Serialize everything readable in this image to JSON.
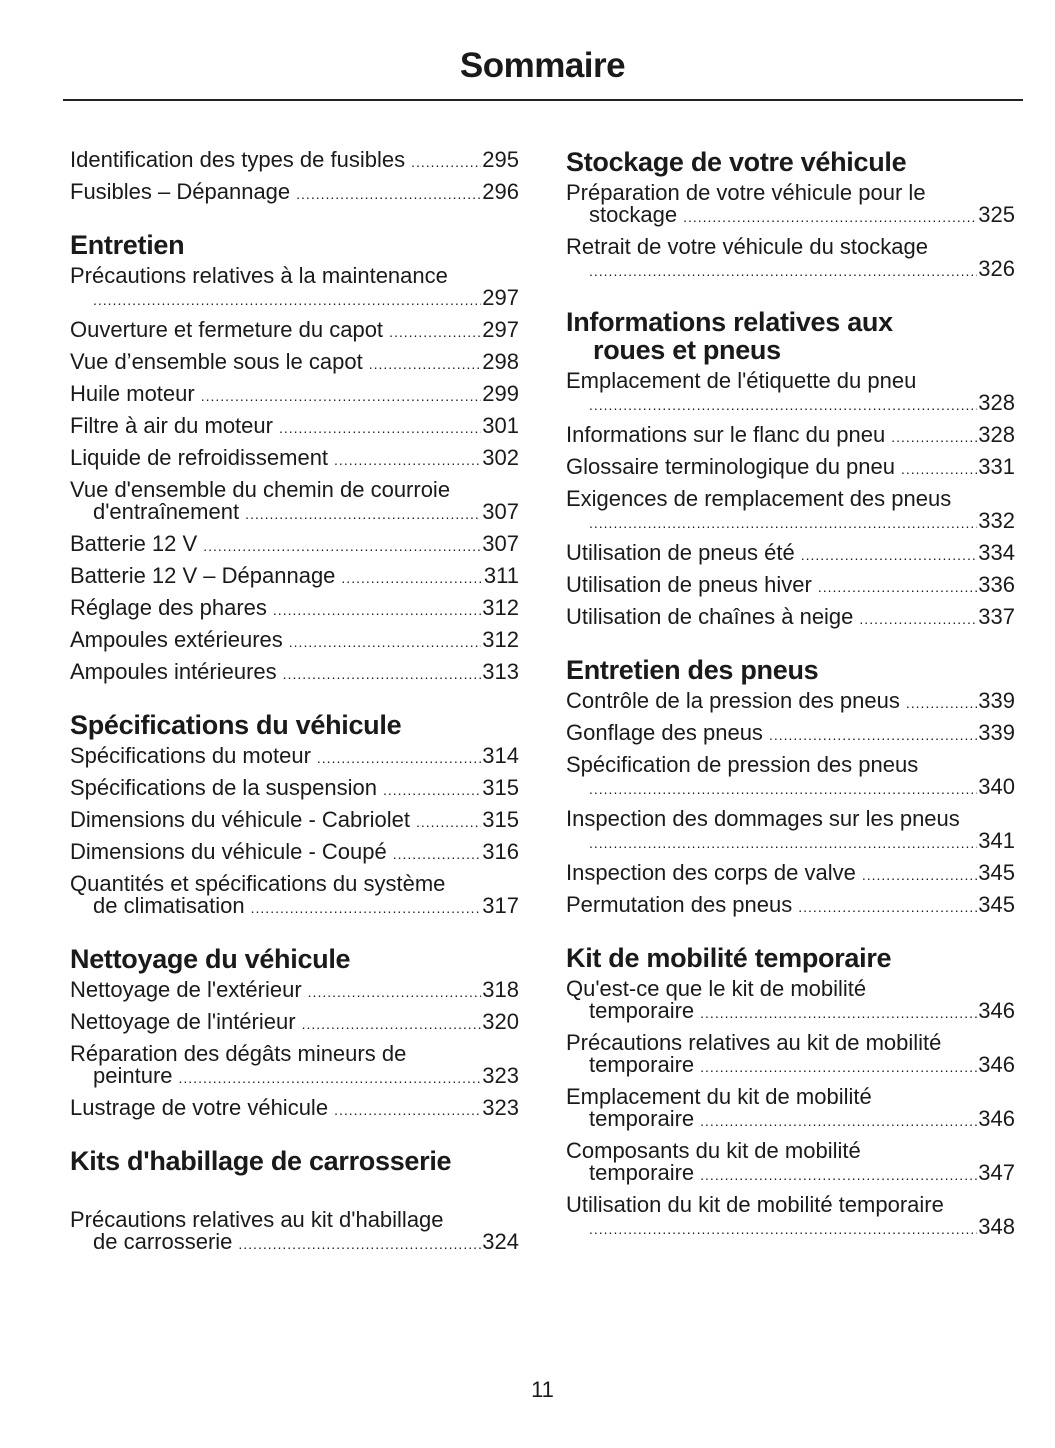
{
  "page_title": "Sommaire",
  "page_number": "11",
  "left_column": [
    {
      "type": "entry",
      "text": "Identification des types de fusibles",
      "page": "295"
    },
    {
      "type": "entry",
      "text": "Fusibles – Dépannage",
      "page": "296"
    },
    {
      "type": "heading",
      "text": "Entretien"
    },
    {
      "type": "entry",
      "text": "Précautions relatives à la maintenance",
      "wrap": "",
      "page": "297"
    },
    {
      "type": "entry",
      "text": "Ouverture et fermeture du capot",
      "page": "297"
    },
    {
      "type": "entry",
      "text": "Vue d’ensemble sous le capot",
      "page": "298"
    },
    {
      "type": "entry",
      "text": "Huile moteur",
      "page": "299"
    },
    {
      "type": "entry",
      "text": "Filtre à air du moteur",
      "page": "301"
    },
    {
      "type": "entry",
      "text": "Liquide de refroidissement",
      "page": "302"
    },
    {
      "type": "entry",
      "text": "Vue d'ensemble du chemin de courroie",
      "wrap": "d'entraînement",
      "page": "307"
    },
    {
      "type": "entry",
      "text": "Batterie 12 V",
      "page": "307"
    },
    {
      "type": "entry",
      "text": "Batterie 12 V – Dépannage",
      "page": "311"
    },
    {
      "type": "entry",
      "text": "Réglage des phares",
      "page": "312"
    },
    {
      "type": "entry",
      "text": "Ampoules extérieures",
      "page": "312"
    },
    {
      "type": "entry",
      "text": "Ampoules intérieures",
      "page": "313"
    },
    {
      "type": "heading",
      "text": "Spécifications du véhicule"
    },
    {
      "type": "entry",
      "text": "Spécifications du moteur",
      "page": "314"
    },
    {
      "type": "entry",
      "text": "Spécifications de la suspension",
      "page": "315"
    },
    {
      "type": "entry",
      "text": "Dimensions du véhicule - Cabriolet",
      "page": "315"
    },
    {
      "type": "entry",
      "text": "Dimensions du véhicule - Coupé",
      "page": "316"
    },
    {
      "type": "entry",
      "text": "Quantités et spécifications du système",
      "wrap": "de climatisation",
      "page": "317"
    },
    {
      "type": "heading",
      "text": "Nettoyage du véhicule"
    },
    {
      "type": "entry",
      "text": "Nettoyage de l'extérieur",
      "page": "318"
    },
    {
      "type": "entry",
      "text": "Nettoyage de l'intérieur",
      "page": "320"
    },
    {
      "type": "entry",
      "text": "Réparation des dégâts mineurs de",
      "wrap": "peinture",
      "page": "323"
    },
    {
      "type": "entry",
      "text": "Lustrage de votre véhicule",
      "page": "323"
    },
    {
      "type": "heading",
      "text": "Kits d'habillage de carrosserie",
      "spaced": true
    },
    {
      "type": "entry",
      "text": "Précautions relatives au kit d'habillage",
      "wrap": "de carrosserie",
      "page": "324"
    }
  ],
  "right_column": [
    {
      "type": "heading",
      "text": "Stockage de votre véhicule"
    },
    {
      "type": "entry",
      "text": "Préparation de votre véhicule pour le",
      "wrap": "stockage",
      "page": "325"
    },
    {
      "type": "entry",
      "text": "Retrait de votre véhicule du stockage",
      "wrap": "",
      "page": "326"
    },
    {
      "type": "heading",
      "text": "Informations relatives aux",
      "cont": "roues et pneus"
    },
    {
      "type": "entry",
      "text": "Emplacement de l'étiquette du pneu",
      "wrap": "",
      "page": "328"
    },
    {
      "type": "entry",
      "text": "Informations sur le flanc du pneu",
      "page": "328"
    },
    {
      "type": "entry",
      "text": "Glossaire terminologique du pneu",
      "page": "331"
    },
    {
      "type": "entry",
      "text": "Exigences de remplacement des pneus",
      "wrap": "",
      "page": "332"
    },
    {
      "type": "entry",
      "text": "Utilisation de pneus été",
      "page": "334"
    },
    {
      "type": "entry",
      "text": "Utilisation de pneus hiver",
      "page": "336"
    },
    {
      "type": "entry",
      "text": "Utilisation de chaînes à neige",
      "page": "337"
    },
    {
      "type": "heading",
      "text": "Entretien des pneus"
    },
    {
      "type": "entry",
      "text": "Contrôle de la pression des pneus",
      "page": "339"
    },
    {
      "type": "entry",
      "text": "Gonflage des pneus",
      "page": "339"
    },
    {
      "type": "entry",
      "text": "Spécification de pression des pneus",
      "wrap": "",
      "page": "340"
    },
    {
      "type": "entry",
      "text": "Inspection des dommages sur les pneus",
      "wrap": "",
      "page": "341"
    },
    {
      "type": "entry",
      "text": "Inspection des corps de valve",
      "page": "345"
    },
    {
      "type": "entry",
      "text": "Permutation des pneus",
      "page": "345"
    },
    {
      "type": "heading",
      "text": "Kit de mobilité temporaire"
    },
    {
      "type": "entry",
      "text": "Qu'est-ce que le kit de mobilité",
      "wrap": "temporaire",
      "page": "346"
    },
    {
      "type": "entry",
      "text": "Précautions relatives au kit de mobilité",
      "wrap": "temporaire",
      "page": "346"
    },
    {
      "type": "entry",
      "text": "Emplacement du kit de mobilité",
      "wrap": "temporaire",
      "page": "346"
    },
    {
      "type": "entry",
      "text": "Composants du kit de mobilité",
      "wrap": "temporaire",
      "page": "347"
    },
    {
      "type": "entry",
      "text": "Utilisation du kit de mobilité temporaire",
      "wrap": "",
      "page": "348"
    }
  ]
}
